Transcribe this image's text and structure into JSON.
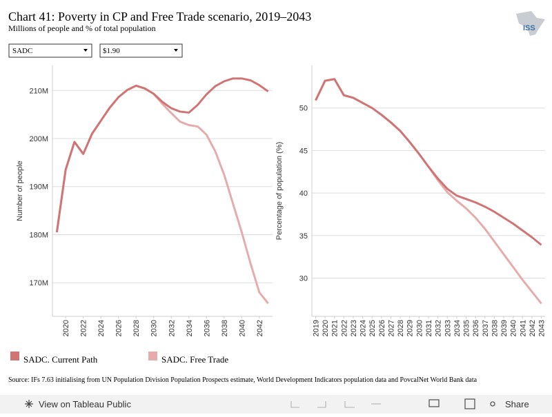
{
  "header": {
    "title": "Chart 41: Poverty in CP and Free Trade scenario, 2019–2043",
    "subtitle": "Millions of people and % of total population"
  },
  "filters": [
    "SADC",
    "$1.90"
  ],
  "logo": "ISS",
  "chart_data": [
    {
      "type": "line",
      "ylabel": "Number of people",
      "x": [
        2019,
        2020,
        2021,
        2022,
        2023,
        2024,
        2025,
        2026,
        2027,
        2028,
        2029,
        2030,
        2031,
        2032,
        2033,
        2034,
        2035,
        2036,
        2037,
        2038,
        2039,
        2040,
        2041,
        2042,
        2043
      ],
      "xlim": [
        2018.5,
        2043.5
      ],
      "xticks": [
        2020,
        2022,
        2024,
        2026,
        2028,
        2030,
        2032,
        2034,
        2036,
        2038,
        2040,
        2042
      ],
      "ylim": [
        163000000,
        215200000
      ],
      "yticks": [
        {
          "value": 170000000,
          "label": "170M"
        },
        {
          "value": 180000000,
          "label": "180M"
        },
        {
          "value": 190000000,
          "label": "190M"
        },
        {
          "value": 200000000,
          "label": "200M"
        },
        {
          "value": 210000000,
          "label": "210M"
        }
      ],
      "grid": true,
      "series": [
        {
          "name": "SADC. Free Trade",
          "color": "#e6acac",
          "values": [
            180500000,
            193500000,
            199300000,
            196800000,
            201000000,
            203700000,
            206400000,
            208600000,
            210100000,
            211000000,
            210400000,
            209300000,
            207200000,
            205300000,
            203500000,
            202800000,
            202500000,
            200800000,
            197300000,
            192500000,
            186500000,
            180500000,
            174000000,
            168000000,
            165700000
          ]
        },
        {
          "name": "SADC. Current Path",
          "color": "#d07474",
          "values": [
            180500000,
            193500000,
            199300000,
            196800000,
            201000000,
            203700000,
            206400000,
            208600000,
            210100000,
            211000000,
            210400000,
            209300000,
            207600000,
            206300000,
            205600000,
            205400000,
            207000000,
            209200000,
            210900000,
            211900000,
            212500000,
            212500000,
            212100000,
            211100000,
            209800000
          ]
        }
      ]
    },
    {
      "type": "line",
      "ylabel": "Percentage of population (%)",
      "x": [
        2019,
        2020,
        2021,
        2022,
        2023,
        2024,
        2025,
        2026,
        2027,
        2028,
        2029,
        2030,
        2031,
        2032,
        2033,
        2034,
        2035,
        2036,
        2037,
        2038,
        2039,
        2040,
        2041,
        2042,
        2043
      ],
      "xlim": [
        2018.6,
        2043.4
      ],
      "xticks": [
        2019,
        2020,
        2021,
        2022,
        2023,
        2024,
        2025,
        2026,
        2027,
        2028,
        2029,
        2030,
        2031,
        2032,
        2033,
        2034,
        2035,
        2036,
        2037,
        2038,
        2039,
        2040,
        2041,
        2042,
        2043
      ],
      "ylim": [
        25.5,
        55
      ],
      "yticks": [
        30,
        35,
        40,
        45,
        50
      ],
      "grid": true,
      "series": [
        {
          "name": "SADC. Free Trade",
          "color": "#e6acac",
          "values": [
            50.9,
            53.2,
            53.4,
            51.5,
            51.2,
            50.6,
            50,
            49.2,
            48.3,
            47.3,
            46,
            44.6,
            43.1,
            41.5,
            40.1,
            39.1,
            38.2,
            37.1,
            35.8,
            34.3,
            32.8,
            31.3,
            29.8,
            28.4,
            27
          ]
        },
        {
          "name": "SADC. Current Path",
          "color": "#d07474",
          "values": [
            50.9,
            53.2,
            53.4,
            51.5,
            51.2,
            50.6,
            50,
            49.2,
            48.3,
            47.3,
            46,
            44.6,
            43.1,
            41.7,
            40.5,
            39.7,
            39.3,
            38.9,
            38.4,
            37.8,
            37.1,
            36.4,
            35.6,
            34.8,
            33.9
          ]
        }
      ]
    }
  ],
  "source": "Source: IFs 7.63 initialising from UN Population Division Population Prospects estimate, World Development Indicators population data and PovcalNet World Bank data",
  "toolbar": {
    "view": "View on Tableau Public",
    "share": "Share"
  }
}
